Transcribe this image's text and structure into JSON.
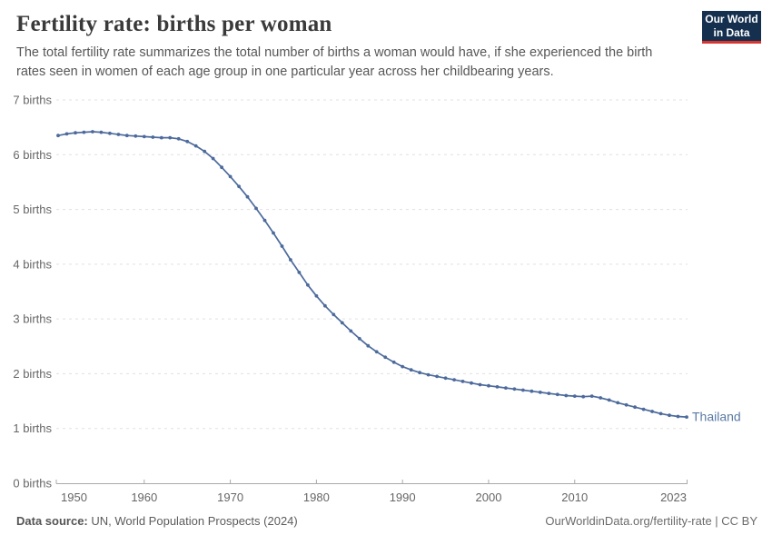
{
  "header": {
    "title": "Fertility rate: births per woman",
    "subtitle": "The total fertility rate summarizes the total number of births a woman would have, if she experienced the birth rates seen in women of each age group in one particular year across her childbearing years.",
    "logo": {
      "line1": "Our World",
      "line2": "in Data",
      "bg_color": "#15304f",
      "stripe_color": "#d8352e"
    }
  },
  "footer": {
    "source_label": "Data source:",
    "source_text": " UN, World Population Prospects (2024)",
    "credit_text": "OurWorldinData.org/fertility-rate | CC BY"
  },
  "chart_data": {
    "type": "line",
    "title": "Fertility rate: births per woman",
    "entity_label": "Thailand",
    "xlabel": "",
    "ylabel": "",
    "xlim": [
      1950,
      2023
    ],
    "ylim": [
      0,
      7
    ],
    "grid": "horizontal-dashed",
    "legend_position": "end-of-line",
    "x_ticks": [
      1950,
      1960,
      1970,
      1980,
      1990,
      2000,
      2010,
      2023
    ],
    "x_tick_labels": [
      "1950",
      "1960",
      "1970",
      "1980",
      "1990",
      "2000",
      "2010",
      "2023"
    ],
    "y_ticks": [
      0,
      1,
      2,
      3,
      4,
      5,
      6,
      7
    ],
    "y_tick_labels": [
      "0 births",
      "1 births",
      "2 births",
      "3 births",
      "4 births",
      "5 births",
      "6 births",
      "7 births"
    ],
    "colors": {
      "line": "#4C6A9C",
      "series_label": "#5b7aa5",
      "gridline": "#e0e0e0",
      "axis": "#a9a9a9",
      "tick_label": "#666666"
    },
    "series": [
      {
        "name": "Thailand",
        "x": [
          1950,
          1951,
          1952,
          1953,
          1954,
          1955,
          1956,
          1957,
          1958,
          1959,
          1960,
          1961,
          1962,
          1963,
          1964,
          1965,
          1966,
          1967,
          1968,
          1969,
          1970,
          1971,
          1972,
          1973,
          1974,
          1975,
          1976,
          1977,
          1978,
          1979,
          1980,
          1981,
          1982,
          1983,
          1984,
          1985,
          1986,
          1987,
          1988,
          1989,
          1990,
          1991,
          1992,
          1993,
          1994,
          1995,
          1996,
          1997,
          1998,
          1999,
          2000,
          2001,
          2002,
          2003,
          2004,
          2005,
          2006,
          2007,
          2008,
          2009,
          2010,
          2011,
          2012,
          2013,
          2014,
          2015,
          2016,
          2017,
          2018,
          2019,
          2020,
          2021,
          2022,
          2023
        ],
        "values": [
          6.35,
          6.38,
          6.4,
          6.41,
          6.42,
          6.41,
          6.39,
          6.37,
          6.35,
          6.34,
          6.33,
          6.32,
          6.31,
          6.31,
          6.29,
          6.24,
          6.16,
          6.06,
          5.93,
          5.77,
          5.6,
          5.42,
          5.23,
          5.02,
          4.8,
          4.57,
          4.33,
          4.08,
          3.85,
          3.62,
          3.42,
          3.24,
          3.08,
          2.93,
          2.78,
          2.64,
          2.51,
          2.4,
          2.3,
          2.21,
          2.13,
          2.07,
          2.02,
          1.98,
          1.95,
          1.92,
          1.89,
          1.86,
          1.83,
          1.8,
          1.78,
          1.76,
          1.74,
          1.72,
          1.7,
          1.68,
          1.66,
          1.64,
          1.62,
          1.6,
          1.59,
          1.58,
          1.59,
          1.56,
          1.52,
          1.47,
          1.43,
          1.39,
          1.35,
          1.31,
          1.27,
          1.24,
          1.22,
          1.21
        ]
      }
    ]
  }
}
